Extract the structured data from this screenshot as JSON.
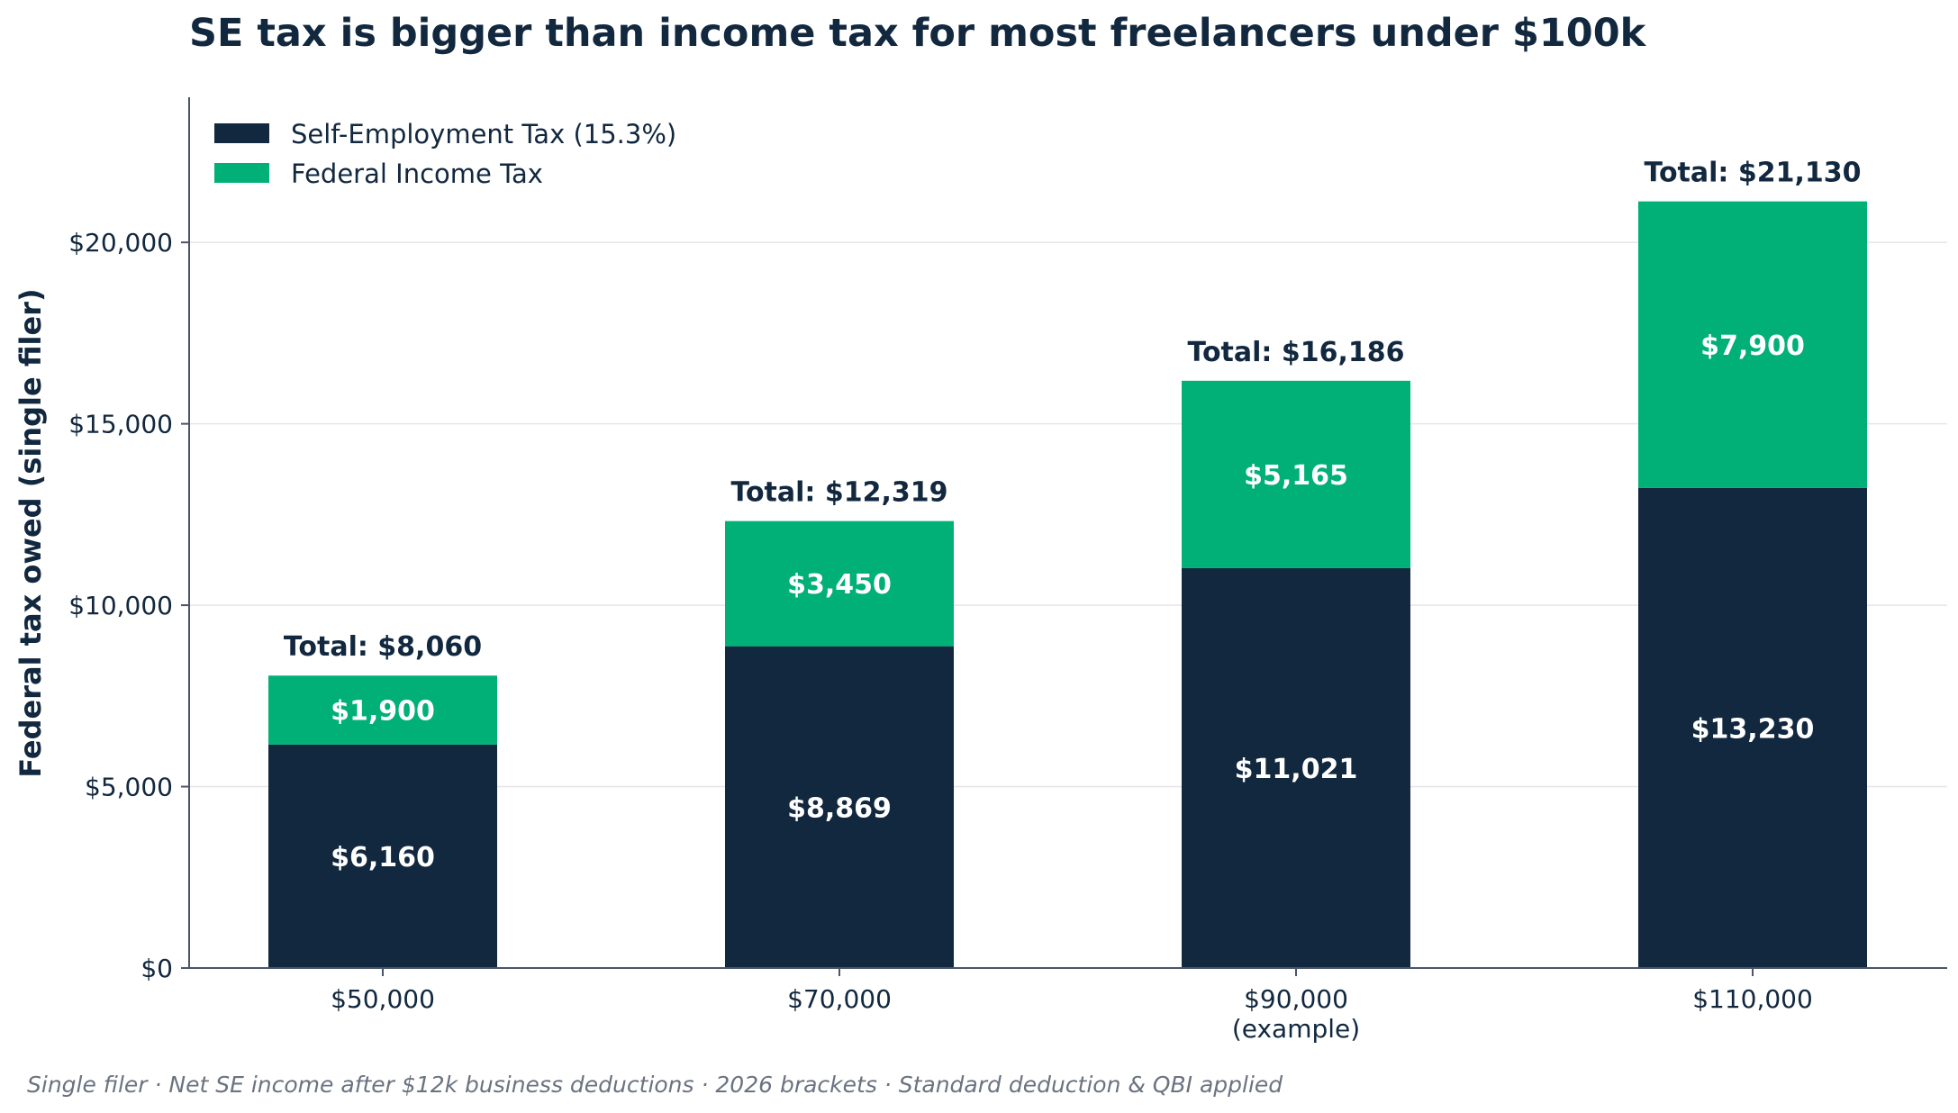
{
  "colors": {
    "se_tax": "#12283f",
    "income_tax": "#00b077",
    "text": "#12283f",
    "footnote": "#6b7380",
    "grid": "#e3e6ea"
  },
  "chart_data": {
    "type": "bar",
    "stacked": true,
    "title": "SE tax is bigger than income tax for most freelancers under $100k",
    "xlabel": "",
    "ylabel": "Federal tax owed (single filer)",
    "categories": [
      "$50,000",
      "$70,000",
      "$90,000\n(example)",
      "$110,000"
    ],
    "category_lines": [
      [
        "$50,000"
      ],
      [
        "$70,000"
      ],
      [
        "$90,000",
        "(example)"
      ],
      [
        "$110,000"
      ]
    ],
    "series": [
      {
        "name": "Self-Employment Tax (15.3%)",
        "values": [
          6160,
          8869,
          11021,
          13230
        ],
        "labels": [
          "$6,160",
          "$8,869",
          "$11,021",
          "$13,230"
        ]
      },
      {
        "name": "Federal Income Tax",
        "values": [
          1900,
          3450,
          5165,
          7900
        ],
        "labels": [
          "$1,900",
          "$3,450",
          "$5,165",
          "$7,900"
        ]
      }
    ],
    "totals": [
      8060,
      12319,
      16186,
      21130
    ],
    "total_labels": [
      "Total: $8,060",
      "Total: $12,319",
      "Total: $16,186",
      "Total: $21,130"
    ],
    "ylim": [
      0,
      24000
    ],
    "yticks": [
      0,
      5000,
      10000,
      15000,
      20000
    ],
    "ytick_labels": [
      "$0",
      "$5,000",
      "$10,000",
      "$15,000",
      "$20,000"
    ],
    "grid": "horizontal",
    "legend_position": "top-left"
  },
  "footnote": "Single filer · Net SE income after $12k business deductions · 2026 brackets · Standard deduction & QBI applied"
}
